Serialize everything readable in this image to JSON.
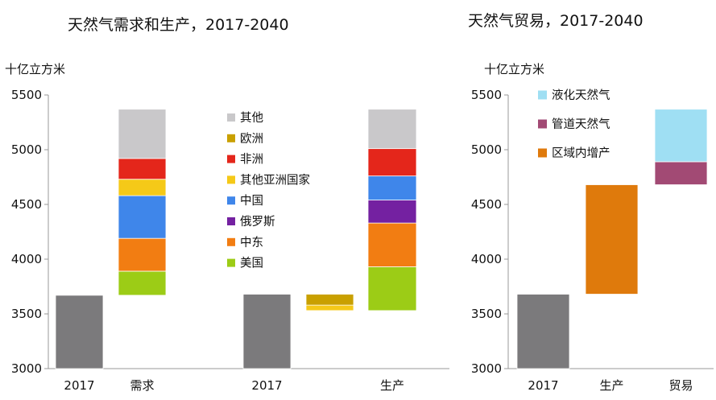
{
  "chart_data": [
    {
      "type": "bar",
      "title": "天然气需求和生产，2017-2040",
      "ylabel": "十亿立方米",
      "ylim": [
        3000,
        5500
      ],
      "yticks": [
        3000,
        3500,
        4000,
        4500,
        5000,
        5500
      ],
      "categories": [
        "2017",
        "需求",
        "2017",
        "生产"
      ],
      "legend_position": "center",
      "series": [
        {
          "name": "其他",
          "color": "#c9c8ca"
        },
        {
          "name": "欧洲",
          "color": "#c9a000"
        },
        {
          "name": "非洲",
          "color": "#e4261b"
        },
        {
          "name": "其他亚洲国家",
          "color": "#f5c918"
        },
        {
          "name": "中国",
          "color": "#3f86ea"
        },
        {
          "name": "俄罗斯",
          "color": "#7421a1"
        },
        {
          "name": "中东",
          "color": "#f27d12"
        },
        {
          "name": "美国",
          "color": "#9ccc16"
        }
      ],
      "bars": [
        {
          "category": "2017",
          "segments": [
            {
              "series": "2017",
              "from": 3000,
              "to": 3670,
              "color": "#7b7a7c"
            }
          ]
        },
        {
          "category": "需求",
          "segments": [
            {
              "series": "美国",
              "from": 3670,
              "to": 3890
            },
            {
              "series": "中东",
              "from": 3890,
              "to": 4190
            },
            {
              "series": "中国",
              "from": 4190,
              "to": 4580
            },
            {
              "series": "其他亚洲国家",
              "from": 4580,
              "to": 4730
            },
            {
              "series": "非洲",
              "from": 4730,
              "to": 4920
            },
            {
              "series": "其他",
              "from": 4920,
              "to": 5370
            }
          ]
        },
        {
          "category": "2017",
          "segments": [
            {
              "series": "2017",
              "from": 3000,
              "to": 3680,
              "color": "#7b7a7c"
            }
          ]
        },
        {
          "category": "",
          "segments": [
            {
              "series": "其他亚洲国家",
              "from": 3530,
              "to": 3580
            },
            {
              "series": "欧洲",
              "from": 3580,
              "to": 3680
            }
          ]
        },
        {
          "category": "生产",
          "segments": [
            {
              "series": "美国",
              "from": 3530,
              "to": 3930
            },
            {
              "series": "中东",
              "from": 3930,
              "to": 4330
            },
            {
              "series": "俄罗斯",
              "from": 4330,
              "to": 4540
            },
            {
              "series": "中国",
              "from": 4540,
              "to": 4760
            },
            {
              "series": "非洲",
              "from": 4760,
              "to": 5010
            },
            {
              "series": "其他",
              "from": 5010,
              "to": 5370
            }
          ]
        }
      ]
    },
    {
      "type": "bar",
      "title": "天然气贸易，2017-2040",
      "ylabel": "十亿立方米",
      "ylim": [
        3000,
        5500
      ],
      "yticks": [
        3000,
        3500,
        4000,
        4500,
        5000,
        5500
      ],
      "categories": [
        "2017",
        "生产",
        "贸易"
      ],
      "legend_position": "top-left",
      "series": [
        {
          "name": "液化天然气",
          "color": "#9fdff3"
        },
        {
          "name": "管道天然气",
          "color": "#a24a74"
        },
        {
          "name": "区域内增产",
          "color": "#df7a0c"
        }
      ],
      "bars": [
        {
          "category": "2017",
          "segments": [
            {
              "series": "2017",
              "from": 3000,
              "to": 3680,
              "color": "#7b7a7c"
            }
          ]
        },
        {
          "category": "生产",
          "segments": [
            {
              "series": "区域内增产",
              "from": 3680,
              "to": 4680
            }
          ]
        },
        {
          "category": "贸易",
          "segments": [
            {
              "series": "管道天然气",
              "from": 4680,
              "to": 4890
            },
            {
              "series": "液化天然气",
              "from": 4890,
              "to": 5370
            }
          ]
        }
      ]
    }
  ]
}
